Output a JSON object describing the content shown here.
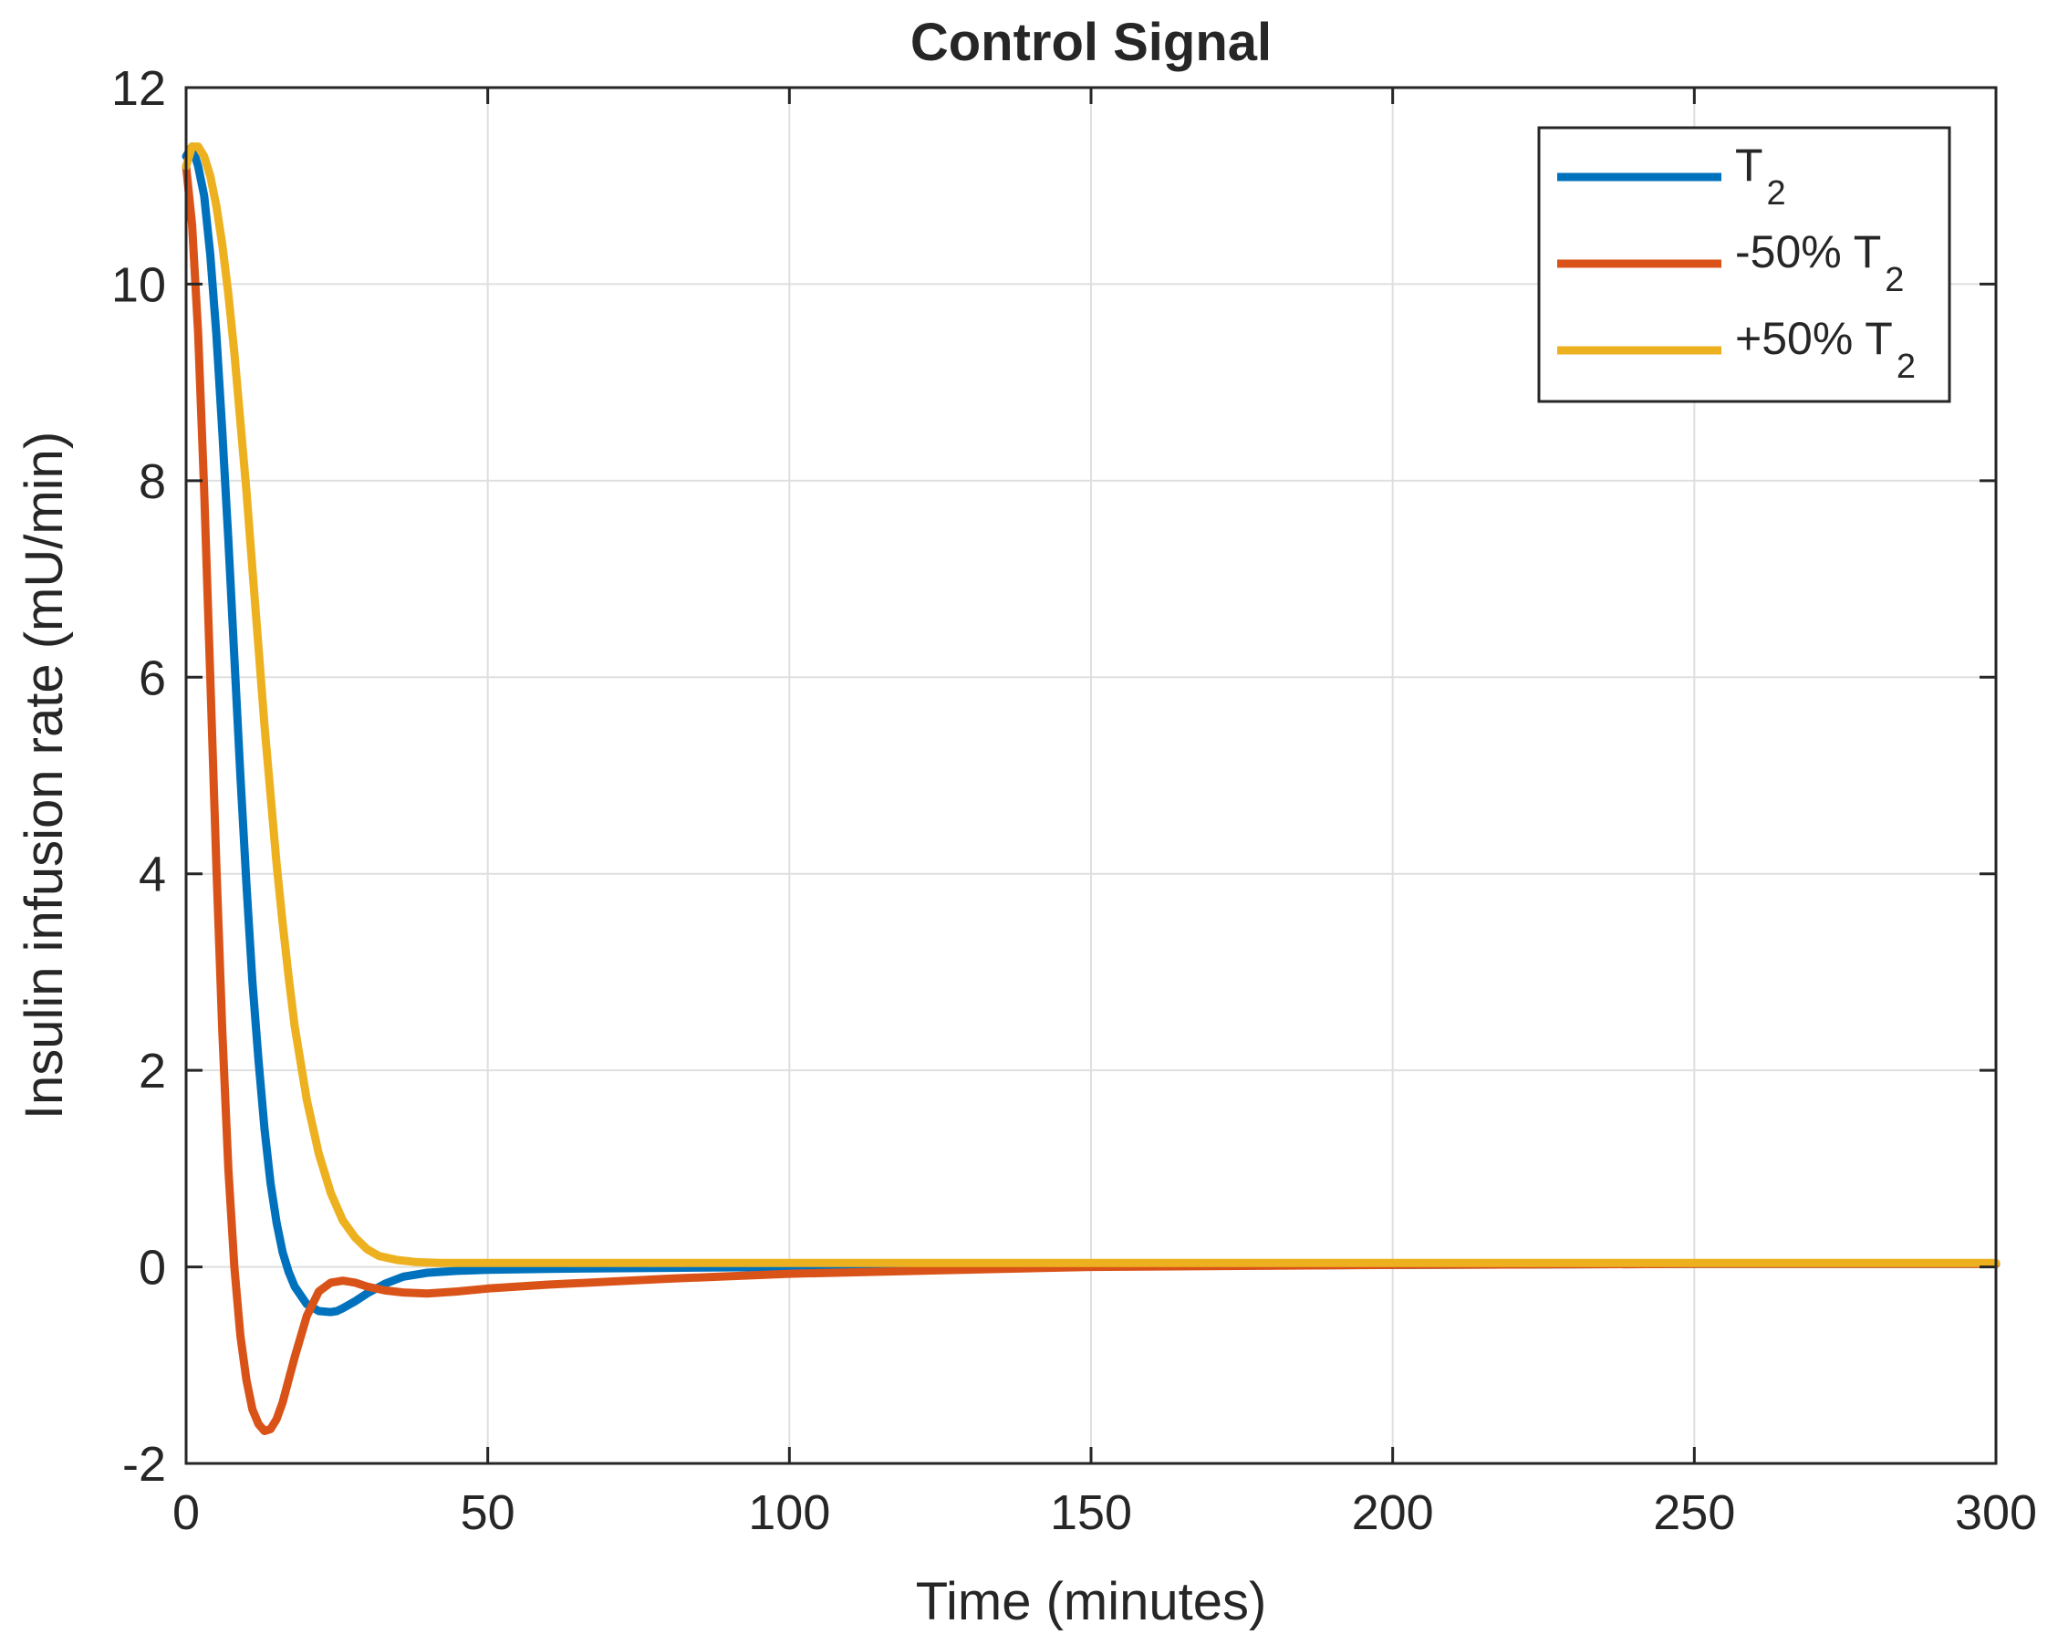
{
  "chart_data": {
    "type": "line",
    "title": "Control Signal",
    "xlabel": "Time (minutes)",
    "ylabel": "Insulin infusion rate (mU/min)",
    "xlim": [
      0,
      300
    ],
    "ylim": [
      -2,
      12
    ],
    "xticks": [
      0,
      50,
      100,
      150,
      200,
      250,
      300
    ],
    "xtick_labels": [
      "0",
      "50",
      "100",
      "150",
      "200",
      "250",
      "300"
    ],
    "yticks": [
      -2,
      0,
      2,
      4,
      6,
      8,
      10,
      12
    ],
    "ytick_labels": [
      "-2",
      "0",
      "2",
      "4",
      "6",
      "8",
      "10",
      "12"
    ],
    "grid": true,
    "legend_position": "top-right",
    "series": [
      {
        "name": "T2",
        "legend_main": "T",
        "legend_sub": "2",
        "color": "#0072BD",
        "x": [
          0,
          1,
          2,
          3,
          4,
          5,
          6,
          7,
          8,
          9,
          10,
          11,
          12,
          13,
          14,
          15,
          16,
          17,
          18,
          20,
          22,
          24,
          25,
          26,
          28,
          30,
          33,
          36,
          40,
          45,
          50,
          60,
          80,
          100,
          150,
          200,
          250,
          300
        ],
        "y": [
          11.3,
          11.4,
          11.2,
          10.9,
          10.3,
          9.5,
          8.5,
          7.4,
          6.2,
          5.0,
          3.9,
          2.9,
          2.1,
          1.4,
          0.85,
          0.45,
          0.15,
          -0.05,
          -0.2,
          -0.38,
          -0.45,
          -0.46,
          -0.45,
          -0.42,
          -0.35,
          -0.27,
          -0.17,
          -0.1,
          -0.06,
          -0.04,
          -0.03,
          -0.02,
          -0.01,
          0.0,
          0.01,
          0.02,
          0.03,
          0.03
        ]
      },
      {
        "name": "-50% T2",
        "legend_main": "-50% T",
        "legend_sub": "2",
        "color": "#D95319",
        "x": [
          0,
          1,
          2,
          3,
          4,
          5,
          6,
          7,
          8,
          9,
          10,
          11,
          12,
          13,
          14,
          15,
          16,
          17,
          18,
          20,
          22,
          24,
          26,
          28,
          30,
          33,
          36,
          40,
          45,
          50,
          60,
          80,
          100,
          150,
          200,
          250,
          300
        ],
        "y": [
          11.2,
          10.6,
          9.5,
          7.9,
          6.0,
          4.1,
          2.4,
          1.0,
          0.0,
          -0.7,
          -1.15,
          -1.45,
          -1.6,
          -1.67,
          -1.65,
          -1.55,
          -1.38,
          -1.15,
          -0.92,
          -0.5,
          -0.25,
          -0.16,
          -0.14,
          -0.16,
          -0.2,
          -0.24,
          -0.26,
          -0.27,
          -0.25,
          -0.22,
          -0.18,
          -0.12,
          -0.07,
          0.0,
          0.02,
          0.03,
          0.03
        ]
      },
      {
        "name": "+50% T2",
        "legend_main": "+50% T",
        "legend_sub": "2",
        "color": "#EDB120",
        "x": [
          0,
          1,
          2,
          3,
          4,
          5,
          6,
          7,
          8,
          9,
          10,
          11,
          12,
          13,
          14,
          15,
          16,
          17,
          18,
          20,
          22,
          24,
          26,
          28,
          30,
          32,
          35,
          38,
          42,
          46,
          50,
          60,
          80,
          100,
          150,
          200,
          250,
          300
        ],
        "y": [
          11.2,
          11.4,
          11.4,
          11.3,
          11.1,
          10.8,
          10.4,
          9.9,
          9.3,
          8.6,
          7.9,
          7.1,
          6.3,
          5.5,
          4.8,
          4.1,
          3.5,
          2.95,
          2.45,
          1.7,
          1.15,
          0.75,
          0.47,
          0.3,
          0.18,
          0.11,
          0.07,
          0.05,
          0.04,
          0.04,
          0.04,
          0.04,
          0.04,
          0.04,
          0.04,
          0.04,
          0.04,
          0.04
        ]
      }
    ]
  }
}
